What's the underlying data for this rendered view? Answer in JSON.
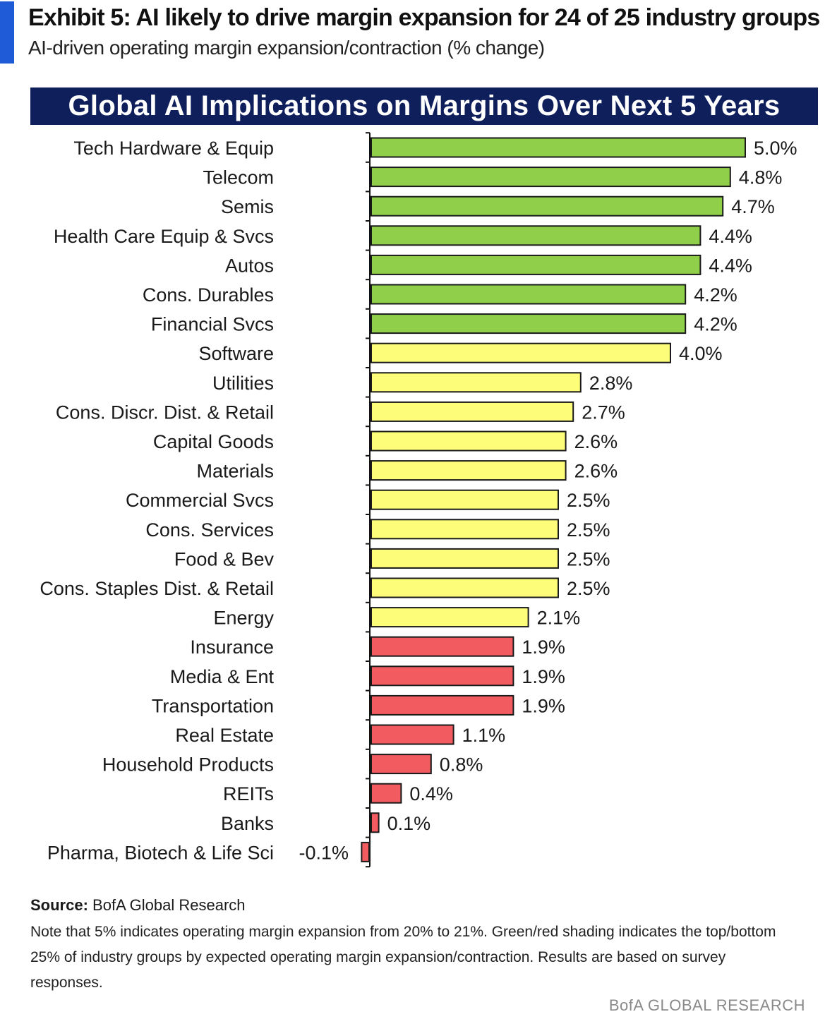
{
  "header": {
    "title": "Exhibit 5: AI likely to drive margin expansion for 24 of 25 industry groups",
    "subtitle": "AI-driven operating margin expansion/contraction (% change)",
    "accent_color": "#1f5bd6"
  },
  "chart_data": {
    "type": "bar",
    "orientation": "horizontal",
    "title": "Global AI Implications on Margins Over Next 5 Years",
    "title_background": "#0f1f5c",
    "categories": [
      "Tech Hardware & Equip",
      "Telecom",
      "Semis",
      "Health Care Equip & Svcs",
      "Autos",
      "Cons. Durables",
      "Financial Svcs",
      "Software",
      "Utilities",
      "Cons. Discr. Dist. & Retail",
      "Capital Goods",
      "Materials",
      "Commercial Svcs",
      "Cons. Services",
      "Food & Bev",
      "Cons. Staples Dist. & Retail",
      "Energy",
      "Insurance",
      "Media & Ent",
      "Transportation",
      "Real Estate",
      "Household Products",
      "REITs",
      "Banks",
      "Pharma, Biotech & Life Sci"
    ],
    "values": [
      5.0,
      4.8,
      4.7,
      4.4,
      4.4,
      4.2,
      4.2,
      4.0,
      2.8,
      2.7,
      2.6,
      2.6,
      2.5,
      2.5,
      2.5,
      2.5,
      2.1,
      1.9,
      1.9,
      1.9,
      1.1,
      0.8,
      0.4,
      0.1,
      -0.1
    ],
    "value_labels": [
      "5.0%",
      "4.8%",
      "4.7%",
      "4.4%",
      "4.4%",
      "4.2%",
      "4.2%",
      "4.0%",
      "2.8%",
      "2.7%",
      "2.6%",
      "2.6%",
      "2.5%",
      "2.5%",
      "2.5%",
      "2.5%",
      "2.1%",
      "1.9%",
      "1.9%",
      "1.9%",
      "1.1%",
      "0.8%",
      "0.4%",
      "0.1%",
      "-0.1%"
    ],
    "bar_groups": [
      "green",
      "green",
      "green",
      "green",
      "green",
      "green",
      "green",
      "yellow",
      "yellow",
      "yellow",
      "yellow",
      "yellow",
      "yellow",
      "yellow",
      "yellow",
      "yellow",
      "yellow",
      "red",
      "red",
      "red",
      "red",
      "red",
      "red",
      "red",
      "red"
    ],
    "colors": {
      "green": "#8fcf4a",
      "yellow": "#fdfd7a",
      "red": "#f25b5f",
      "outline": "#1a1a1a"
    },
    "xlim": [
      -0.1,
      5.0
    ],
    "grid": false,
    "legend": "none"
  },
  "footer": {
    "source_label": "Source:",
    "source_text": "BofA Global Research",
    "note": "Note that 5% indicates operating margin expansion from 20% to 21%. Green/red shading indicates the top/bottom 25% of industry groups by expected operating margin expansion/contraction. Results are based on survey responses.",
    "brand": "BofA GLOBAL RESEARCH"
  }
}
